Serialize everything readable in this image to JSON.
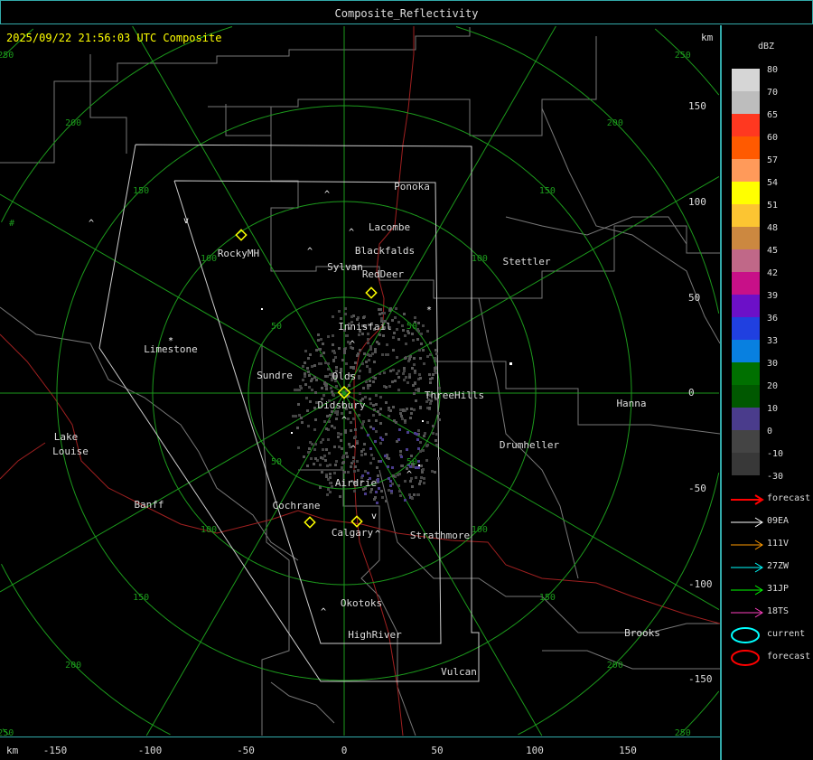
{
  "window": {
    "title": "Composite_Reflectivity"
  },
  "header": {
    "timestamp": "2025/09/22 21:56:03 UTC Composite",
    "unit_top": "km",
    "unit_bottom": "km"
  },
  "x_axis_ticks": [
    "-150",
    "-100",
    "-50",
    "0",
    "50",
    "100",
    "150"
  ],
  "y_axis_ticks": [
    "150",
    "100",
    "50",
    "0",
    "-50",
    "-100",
    "-150"
  ],
  "range_rings": [
    "50",
    "100",
    "150",
    "200",
    "250"
  ],
  "cities": [
    "Ponoka",
    "Lacombe",
    "Blackfalds",
    "Sylvan",
    "RedDeer",
    "Stettler",
    "RockyMH",
    "Innisfail",
    "Limestone",
    "Sundre",
    "Olds",
    "Didsbury",
    "ThreeHills",
    "Hanna",
    "Drumheller",
    "Lake",
    "Louise",
    "Banff",
    "Airdrie",
    "Cochrane",
    "Calgary",
    "Strathmore",
    "Okotoks",
    "HighRiver",
    "Vulcan",
    "Brooks"
  ],
  "legend": {
    "unit": "dBZ",
    "scale": [
      {
        "label": "80",
        "color": "#d6d6d6"
      },
      {
        "label": "70",
        "color": "#bdbdbd"
      },
      {
        "label": "65",
        "color": "#ff3820"
      },
      {
        "label": "60",
        "color": "#ff5a00"
      },
      {
        "label": "57",
        "color": "#ff9a5a"
      },
      {
        "label": "54",
        "color": "#ffff00"
      },
      {
        "label": "51",
        "color": "#fcc532"
      },
      {
        "label": "48",
        "color": "#cc8840"
      },
      {
        "label": "45",
        "color": "#c06888"
      },
      {
        "label": "42",
        "color": "#c81088"
      },
      {
        "label": "39",
        "color": "#6c10c8"
      },
      {
        "label": "36",
        "color": "#2040e0"
      },
      {
        "label": "33",
        "color": "#0880e0"
      },
      {
        "label": "30",
        "color": "#007000"
      },
      {
        "label": "20",
        "color": "#005800"
      },
      {
        "label": "10",
        "color": "#4a3c8c"
      },
      {
        "label": "0",
        "color": "#444444"
      },
      {
        "label": "-10",
        "color": "#383838"
      }
    ],
    "bottom_label": "-30",
    "tracks": [
      {
        "label": "forecast",
        "color": "#ff0000"
      },
      {
        "label": "09EA",
        "color": "#ffffff"
      },
      {
        "label": "111V",
        "color": "#ff9a00"
      },
      {
        "label": "27ZW",
        "color": "#00ffff"
      },
      {
        "label": "31JP",
        "color": "#00ff00"
      },
      {
        "label": "18TS",
        "color": "#ff40c0"
      }
    ],
    "cells": [
      {
        "label": "current",
        "color": "#00ffff"
      },
      {
        "label": "forecast",
        "color": "#ff0000"
      }
    ]
  }
}
